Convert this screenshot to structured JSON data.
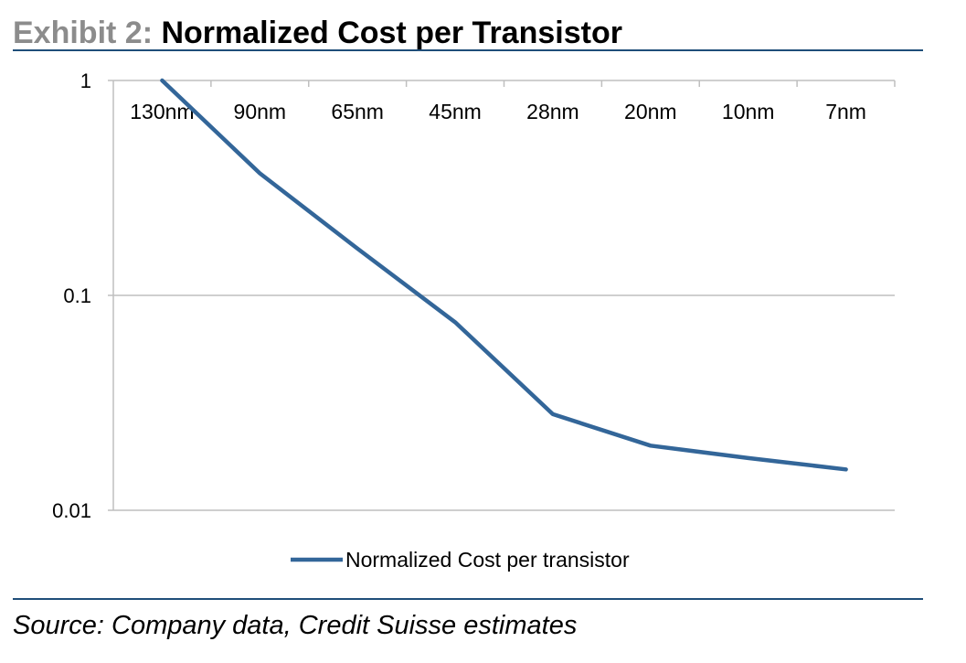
{
  "header": {
    "prefix": "Exhibit 2:",
    "title": "Normalized Cost per Transistor"
  },
  "source": "Source: Company data, Credit Suisse estimates",
  "colors": {
    "line": "#336699",
    "rule": "#1f4e79",
    "grid": "#bfbfbf",
    "prefix": "#8c8c8c"
  },
  "chart_data": {
    "type": "line",
    "title": "Normalized Cost per Transistor",
    "categories": [
      "130nm",
      "90nm",
      "65nm",
      "45nm",
      "28nm",
      "20nm",
      "10nm",
      "7nm"
    ],
    "series": [
      {
        "name": "Normalized Cost per transistor",
        "values": [
          1.0,
          0.37,
          0.165,
          0.075,
          0.028,
          0.02,
          0.0175,
          0.0155
        ]
      }
    ],
    "y_scale": "log",
    "ylim": [
      0.01,
      1
    ],
    "y_ticks": [
      {
        "value": 1,
        "label": "1"
      },
      {
        "value": 0.1,
        "label": "0.1"
      },
      {
        "value": 0.01,
        "label": "0.01"
      }
    ],
    "x_axis_position": "top",
    "grid": "horizontal",
    "legend": "bottom-center",
    "xlabel": "",
    "ylabel": ""
  }
}
